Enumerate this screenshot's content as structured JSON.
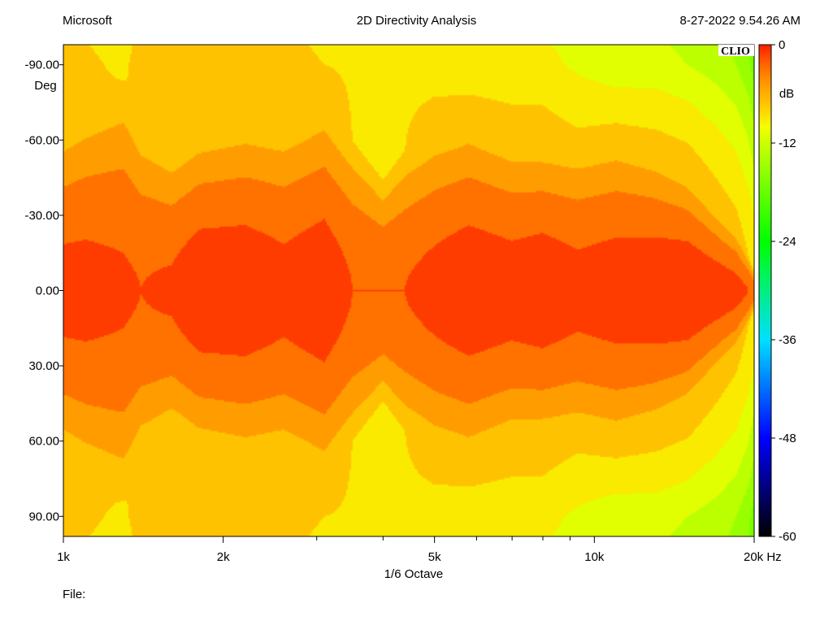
{
  "header": {
    "left": "Microsoft",
    "title": "2D Directivity Analysis",
    "timestamp": "8-27-2022 9.54.26 AM"
  },
  "brand": "CLIO",
  "footer": {
    "file_label": "File:"
  },
  "chart_data": {
    "type": "heatmap",
    "title": "2D Directivity Analysis",
    "xlabel": "1/6 Octave",
    "ylabel": "Deg",
    "x_unit": "Hz",
    "x_scale": "log",
    "xlim": [
      1000,
      20000
    ],
    "ylim": [
      -98,
      98
    ],
    "x_ticks": [
      1000,
      2000,
      5000,
      10000,
      20000
    ],
    "x_tick_labels": [
      "1k",
      "2k",
      "5k",
      "10k",
      "20k Hz"
    ],
    "x_minor_ticks": [
      3000,
      4000,
      6000,
      7000,
      8000,
      9000
    ],
    "y_ticks": [
      -90,
      -60,
      -30,
      0,
      30,
      60,
      90
    ],
    "y_tick_labels": [
      "-90.00",
      "-60.00",
      "-30.00",
      "0.00",
      "30.00",
      "60.00",
      "90.00"
    ],
    "colorbar": {
      "label": "dB",
      "range": [
        -60,
        0
      ],
      "ticks": [
        0,
        -12,
        -24,
        -36,
        -48,
        -60
      ],
      "tick_labels": [
        "0",
        "-12",
        "-24",
        "-36",
        "-48",
        "-60"
      ]
    },
    "colors": {
      "0": "#ff1e00",
      "-2": "#ff5a00",
      "-4": "#ff8a00",
      "-6": "#ffb000",
      "-8": "#ffd400",
      "-10": "#f5ff00",
      "-12": "#ccff00",
      "-18": "#66ff00",
      "-24": "#00ff00",
      "-36": "#00e0ff",
      "-48": "#0000ff",
      "-60": "#000000"
    },
    "freq_nodes_hz": [
      1000,
      1100,
      1300,
      1400,
      1600,
      1800,
      2200,
      2600,
      3100,
      3500,
      4000,
      4400,
      5000,
      5800,
      7000,
      8000,
      9300,
      11000,
      13000,
      15000,
      17000,
      18500,
      19500,
      20000
    ],
    "on_axis_db": [
      -1.5,
      -1.5,
      -1.8,
      -2,
      -1.8,
      -1,
      -1,
      -1.5,
      -1,
      -2,
      -2,
      -2,
      -1.5,
      -1,
      -1.3,
      -1,
      -1.5,
      -1.2,
      -1,
      -0.8,
      -1.2,
      -1.5,
      -2,
      -2.5
    ],
    "beamwidth_6db_deg": [
      64,
      70,
      80,
      66,
      56,
      60,
      64,
      64,
      70,
      60,
      44,
      56,
      62,
      64,
      58,
      56,
      56,
      58,
      52,
      44,
      32,
      24,
      14,
      8
    ],
    "offaxis_90deg_db": [
      -7,
      -7.5,
      -8.5,
      -6.8,
      -7,
      -7.5,
      -7.3,
      -7,
      -8,
      -8.2,
      -9,
      -8.3,
      -8.6,
      -9.2,
      -9,
      -9.3,
      -10.4,
      -11.5,
      -11.3,
      -12,
      -13,
      -14,
      -15.5,
      -17
    ]
  }
}
